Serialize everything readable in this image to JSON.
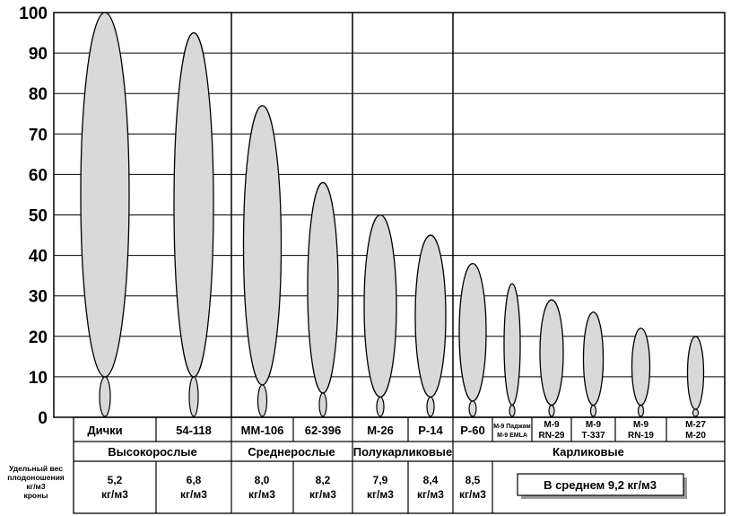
{
  "yaxis": {
    "ticks": [
      "0",
      "10",
      "20",
      "30",
      "40",
      "50",
      "60",
      "70",
      "80",
      "90",
      "100"
    ]
  },
  "rootstocks": [
    {
      "name": [
        "Дички"
      ],
      "crown_height": 100,
      "root_depth": 10
    },
    {
      "name": [
        "54-118"
      ],
      "crown_height": 95,
      "root_depth": 10
    },
    {
      "name": [
        "ММ-106"
      ],
      "crown_height": 77,
      "root_depth": 8
    },
    {
      "name": [
        "62-396"
      ],
      "crown_height": 58,
      "root_depth": 6
    },
    {
      "name": [
        "М-26"
      ],
      "crown_height": 50,
      "root_depth": 5
    },
    {
      "name": [
        "Р-14"
      ],
      "crown_height": 45,
      "root_depth": 5
    },
    {
      "name": [
        "Р-60"
      ],
      "crown_height": 38,
      "root_depth": 4
    },
    {
      "name": [
        "М-9 Паджам",
        "М-9 EMLA"
      ],
      "crown_height": 33,
      "root_depth": 3
    },
    {
      "name": [
        "М-9",
        "RN-29"
      ],
      "crown_height": 29,
      "root_depth": 3
    },
    {
      "name": [
        "М-9",
        "Т-337"
      ],
      "crown_height": 26,
      "root_depth": 3
    },
    {
      "name": [
        "М-9",
        "RN-19"
      ],
      "crown_height": 22,
      "root_depth": 3
    },
    {
      "name": [
        "М-27",
        "М-20"
      ],
      "crown_height": 20,
      "root_depth": 2
    }
  ],
  "groups": [
    "Высокорослые",
    "Среднерослые",
    "Полукарликовые",
    "Карликовые"
  ],
  "density_label": [
    "Удельный вес",
    "плодоношения",
    "кг/м3",
    "кроны"
  ],
  "density_values": [
    [
      "5,2",
      "кг/м3"
    ],
    [
      "6,8",
      "кг/м3"
    ],
    [
      "8,0",
      "кг/м3"
    ],
    [
      "8,2",
      "кг/м3"
    ],
    [
      "7,9",
      "кг/м3"
    ],
    [
      "8,4",
      "кг/м3"
    ],
    [
      "8,5",
      "кг/м3"
    ]
  ],
  "average_note": "В среднем 9,2 кг/м3",
  "colors": {
    "ellipse_fill": "#d9d9d9",
    "line": "#000000",
    "note_shadow": "#9a9a9a"
  }
}
